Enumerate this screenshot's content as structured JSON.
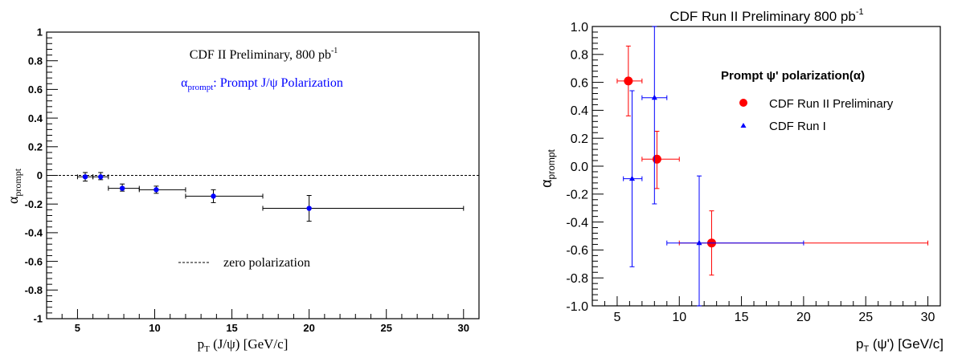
{
  "chart_data": [
    {
      "type": "scatter",
      "title": "CDF II Preliminary, 800 pb",
      "title_sup": "-1",
      "subtitle_symbol": "α",
      "subtitle_sub": "prompt",
      "subtitle_rest": ": Prompt J/ψ Polarization",
      "xlabel_main": "p",
      "xlabel_sub": "T",
      "xlabel_rest": " (J/ψ) [GeV/c]",
      "ylabel_main": "α",
      "ylabel_sub": "prompt",
      "xlim": [
        3,
        31
      ],
      "ylim": [
        -1,
        1
      ],
      "xticks": [
        "5",
        "10",
        "15",
        "20",
        "25",
        "30"
      ],
      "yticks": [
        "-1",
        "-0.8",
        "-0.6",
        "-0.4",
        "-0.2",
        "0",
        "0.2",
        "0.4",
        "0.6",
        "0.8",
        "1"
      ],
      "legend": [
        {
          "label": "zero polarization",
          "style": "dashed"
        }
      ],
      "series": [
        {
          "name": "",
          "color": "#0000ff",
          "points": [
            {
              "x": 5.5,
              "xlo": 5.0,
              "xhi": 6.0,
              "y": -0.01,
              "ylo": -0.04,
              "yhi": 0.02
            },
            {
              "x": 6.5,
              "xlo": 6.0,
              "xhi": 7.0,
              "y": -0.01,
              "ylo": -0.03,
              "yhi": 0.02
            },
            {
              "x": 7.9,
              "xlo": 7.0,
              "xhi": 9.0,
              "y": -0.09,
              "ylo": -0.11,
              "yhi": -0.06
            },
            {
              "x": 10.1,
              "xlo": 9.0,
              "xhi": 12.0,
              "y": -0.1,
              "ylo": -0.125,
              "yhi": -0.075
            },
            {
              "x": 13.8,
              "xlo": 12.0,
              "xhi": 17.0,
              "y": -0.145,
              "ylo": -0.19,
              "yhi": -0.1
            },
            {
              "x": 20.0,
              "xlo": 17.0,
              "xhi": 30.0,
              "y": -0.23,
              "ylo": -0.32,
              "yhi": -0.14
            }
          ]
        }
      ]
    },
    {
      "type": "scatter",
      "title": "CDF Run II Preliminary 800 pb",
      "title_sup": "-1",
      "xlabel_main": "p",
      "xlabel_sub": "T",
      "xlabel_rest": " (ψ') [GeV/c]",
      "ylabel_main": "α",
      "ylabel_sub": "prompt",
      "xlim": [
        3,
        31
      ],
      "ylim": [
        -1,
        1
      ],
      "xticks": [
        "5",
        "10",
        "15",
        "20",
        "25",
        "30"
      ],
      "yticks": [
        "-1.0",
        "-0.8",
        "-0.6",
        "-0.4",
        "-0.2",
        "0.0",
        "0.2",
        "0.4",
        "0.6",
        "0.8",
        "1.0"
      ],
      "legend_title": "Prompt ψ' polarization(α)",
      "series": [
        {
          "name": "CDF Run II Preliminary",
          "color": "#ff0000",
          "marker": "circle",
          "points": [
            {
              "x": 5.9,
              "xlo": 5.0,
              "xhi": 7.0,
              "y": 0.61,
              "ylo": 0.36,
              "yhi": 0.86
            },
            {
              "x": 8.2,
              "xlo": 7.0,
              "xhi": 10.0,
              "y": 0.05,
              "ylo": -0.16,
              "yhi": 0.25
            },
            {
              "x": 12.6,
              "xlo": 10.0,
              "xhi": 30.0,
              "y": -0.55,
              "ylo": -0.78,
              "yhi": -0.32
            }
          ]
        },
        {
          "name": "CDF Run I",
          "color": "#0000ff",
          "marker": "triangle",
          "points": [
            {
              "x": 6.2,
              "xlo": 5.5,
              "xhi": 7.0,
              "y": -0.09,
              "ylo": -0.72,
              "yhi": 0.54
            },
            {
              "x": 8.0,
              "xlo": 7.0,
              "xhi": 9.0,
              "y": 0.49,
              "ylo": -0.27,
              "yhi": 1.0
            },
            {
              "x": 11.6,
              "xlo": 9.0,
              "xhi": 20.0,
              "y": -0.55,
              "ylo": -1.0,
              "yhi": -0.07
            }
          ]
        }
      ]
    }
  ]
}
